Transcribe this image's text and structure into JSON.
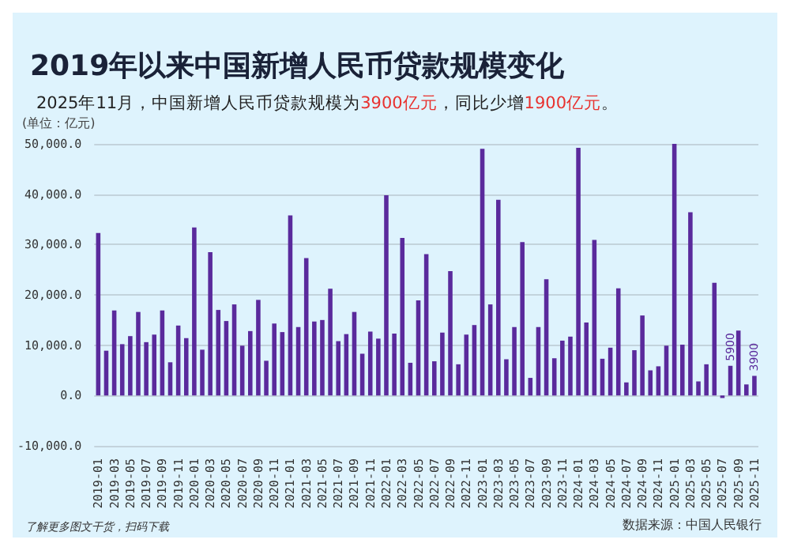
{
  "chart_data": {
    "type": "bar",
    "title": "2019年以来中国新增人民币贷款规模变化",
    "subtitle": "2025年11月，中国新增人民币贷款规模为3900亿元，同比少增1900亿元。",
    "annotations": [
      "(单位：亿元)",
      "了解更多图文干货，扫码下载",
      "数据来源：中国人民银行"
    ],
    "categories": [
      "2019-01",
      null,
      "2019-03",
      null,
      "2019-05",
      null,
      "2019-07",
      null,
      "2019-09",
      null,
      "2019-11",
      null,
      "2020-01",
      null,
      "2020-03",
      null,
      "2020-05",
      null,
      "2020-07",
      null,
      "2020-09",
      null,
      "2020-11",
      null,
      "2021-01",
      null,
      "2021-03",
      null,
      "2021-05",
      null,
      "2021-07",
      null,
      "2021-09",
      null,
      "2021-11",
      null,
      "2022-01",
      null,
      "2022-03",
      null,
      "2022-05",
      null,
      "2022-07",
      null,
      "2022-09",
      null,
      "2022-11",
      null,
      "2023-01",
      null,
      "2023-03",
      null,
      "2023-05",
      null,
      "2023-07",
      null,
      "2023-09",
      null,
      "2023-11",
      null,
      "2024-01",
      null,
      "2024-03",
      null,
      "2024-05",
      null,
      "2024-07",
      null,
      "2024-09",
      null,
      "2024-11",
      null,
      "2025-01",
      null,
      "2025-03",
      null,
      "2025-05",
      null,
      "2025-07",
      null,
      "2025-09",
      null,
      "2025-11"
    ],
    "values": [
      32300,
      8900,
      16900,
      10200,
      11800,
      16600,
      10600,
      12100,
      16900,
      6600,
      13900,
      11400,
      33400,
      9100,
      28500,
      17000,
      14800,
      18100,
      9900,
      12800,
      19000,
      6900,
      14300,
      12600,
      35800,
      13600,
      27300,
      14700,
      15000,
      21200,
      10800,
      12200,
      16600,
      8300,
      12700,
      11300,
      39800,
      12300,
      31300,
      6500,
      18900,
      28100,
      6800,
      12500,
      24700,
      6200,
      12100,
      14000,
      49000,
      18100,
      38900,
      7200,
      13600,
      30500,
      3500,
      13600,
      23100,
      7400,
      10900,
      11700,
      49200,
      14500,
      30900,
      7300,
      9500,
      21300,
      2600,
      9000,
      15900,
      5000,
      5800,
      9900,
      50000,
      10100,
      36400,
      2800,
      6200,
      22400,
      -500,
      5900,
      12900,
      2200,
      3900
    ],
    "value_labels": [
      null,
      null,
      null,
      null,
      null,
      null,
      null,
      null,
      null,
      null,
      null,
      null,
      null,
      null,
      null,
      null,
      null,
      null,
      null,
      null,
      null,
      null,
      null,
      null,
      null,
      null,
      null,
      null,
      null,
      null,
      null,
      null,
      null,
      null,
      null,
      null,
      null,
      null,
      null,
      null,
      null,
      null,
      null,
      null,
      null,
      null,
      null,
      null,
      null,
      null,
      null,
      null,
      null,
      null,
      null,
      null,
      null,
      null,
      null,
      null,
      null,
      null,
      null,
      null,
      null,
      null,
      null,
      null,
      null,
      null,
      null,
      null,
      null,
      null,
      null,
      null,
      null,
      null,
      null,
      "5900",
      null,
      null,
      "3900"
    ],
    "color": "#5a2a9c",
    "ylim": [
      -10000,
      50000
    ],
    "yticks": [
      {
        "value": -10000,
        "label": "-10,000.0"
      },
      {
        "value": 0,
        "label": "0.0"
      },
      {
        "value": 10000,
        "label": "10,000.0"
      },
      {
        "value": 20000,
        "label": "20,000.0"
      },
      {
        "value": 30000,
        "label": "30,000.0"
      },
      {
        "value": 40000,
        "label": "40,000.0"
      },
      {
        "value": 50000,
        "label": "50,000.0"
      }
    ],
    "grid": "y"
  }
}
